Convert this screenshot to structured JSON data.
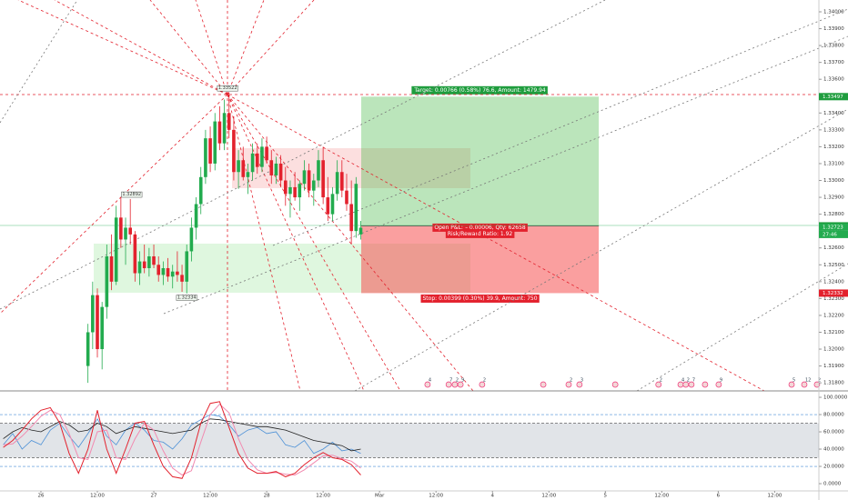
{
  "chart_data": [
    {
      "type": "candlestick",
      "xlim": [
        -8.7,
        165.4
      ],
      "xticks": [
        {
          "value": 0,
          "label": "26"
        },
        {
          "value": 12,
          "label": "12:00"
        },
        {
          "value": 24,
          "label": "27"
        },
        {
          "value": 36,
          "label": "12:00"
        },
        {
          "value": 48,
          "label": "28"
        },
        {
          "value": 60,
          "label": "12:00"
        },
        {
          "value": 72,
          "label": "Mar"
        },
        {
          "value": 84,
          "label": "12:00"
        },
        {
          "value": 96,
          "label": "4"
        },
        {
          "value": 108,
          "label": "12:00"
        },
        {
          "value": 120,
          "label": "5"
        },
        {
          "value": 132,
          "label": "12:00"
        },
        {
          "value": 144,
          "label": "6"
        },
        {
          "value": 156,
          "label": "12:00"
        }
      ],
      "ylim": [
        1.31763,
        1.3407
      ],
      "yticks": [
        {
          "value": 1.34,
          "label": "1.34000"
        },
        {
          "value": 1.339,
          "label": "1.33900"
        },
        {
          "value": 1.338,
          "label": "1.33800"
        },
        {
          "value": 1.337,
          "label": "1.33700"
        },
        {
          "value": 1.336,
          "label": "1.33600"
        },
        {
          "value": 1.335,
          "label": "1.33500"
        },
        {
          "value": 1.334,
          "label": "1.33400"
        },
        {
          "value": 1.333,
          "label": "1.33300"
        },
        {
          "value": 1.332,
          "label": "1.33200"
        },
        {
          "value": 1.331,
          "label": "1.33100"
        },
        {
          "value": 1.33,
          "label": "1.33000"
        },
        {
          "value": 1.329,
          "label": "1.32900"
        },
        {
          "value": 1.328,
          "label": "1.32800"
        },
        {
          "value": 1.327,
          "label": "1.32700"
        },
        {
          "value": 1.326,
          "label": "1.32600"
        },
        {
          "value": 1.325,
          "label": "1.32500"
        },
        {
          "value": 1.324,
          "label": "1.32400"
        },
        {
          "value": 1.323,
          "label": "1.32300"
        },
        {
          "value": 1.322,
          "label": "1.32200"
        },
        {
          "value": 1.321,
          "label": "1.32100"
        },
        {
          "value": 1.32,
          "label": "1.32000"
        },
        {
          "value": 1.319,
          "label": "1.31900"
        },
        {
          "value": 1.318,
          "label": "1.31800"
        }
      ],
      "up_color": "#22ab4e",
      "down_color": "#e3212d",
      "x": [
        10,
        11,
        12,
        13,
        14,
        15,
        16,
        17,
        18,
        19,
        20,
        21,
        22,
        23,
        24,
        25,
        26,
        27,
        28,
        29,
        30,
        31,
        32,
        33,
        34,
        35,
        36,
        37,
        38,
        39,
        40,
        41,
        42,
        43,
        44,
        45,
        46,
        47,
        48,
        49,
        50,
        51,
        52,
        53,
        54,
        55,
        56,
        57,
        58,
        59,
        60,
        61,
        62,
        63,
        64,
        65,
        66,
        67,
        68
      ],
      "open": [
        1.319,
        1.321,
        1.3232,
        1.32,
        1.3225,
        1.3255,
        1.324,
        1.3278,
        1.3265,
        1.3272,
        1.3268,
        1.3245,
        1.3252,
        1.3248,
        1.3255,
        1.325,
        1.3244,
        1.3248,
        1.3243,
        1.3246,
        1.3244,
        1.324,
        1.3258,
        1.3272,
        1.3286,
        1.3302,
        1.3325,
        1.331,
        1.3335,
        1.3322,
        1.334,
        1.333,
        1.3305,
        1.3312,
        1.3302,
        1.3305,
        1.3316,
        1.3308,
        1.332,
        1.3312,
        1.3303,
        1.331,
        1.33,
        1.3292,
        1.3296,
        1.329,
        1.3298,
        1.3306,
        1.3294,
        1.33,
        1.3312,
        1.329,
        1.328,
        1.3292,
        1.3305,
        1.3294,
        1.3286,
        1.327,
        1.3268
      ],
      "high": [
        1.3215,
        1.324,
        1.3236,
        1.3228,
        1.3262,
        1.3268,
        1.3285,
        1.329,
        1.3278,
        1.3289,
        1.327,
        1.3258,
        1.3262,
        1.326,
        1.3262,
        1.3255,
        1.3252,
        1.3254,
        1.325,
        1.3258,
        1.325,
        1.3262,
        1.3278,
        1.329,
        1.3308,
        1.333,
        1.3332,
        1.334,
        1.3344,
        1.3348,
        1.3352,
        1.3338,
        1.3318,
        1.332,
        1.331,
        1.3322,
        1.3322,
        1.3325,
        1.3326,
        1.3318,
        1.3314,
        1.3315,
        1.3308,
        1.33,
        1.3305,
        1.33,
        1.3312,
        1.331,
        1.3304,
        1.3318,
        1.332,
        1.3302,
        1.3296,
        1.3312,
        1.3312,
        1.3304,
        1.33,
        1.3302,
        1.3276
      ],
      "low": [
        1.318,
        1.32,
        1.3195,
        1.3188,
        1.3218,
        1.3235,
        1.3238,
        1.326,
        1.325,
        1.3262,
        1.324,
        1.3238,
        1.3245,
        1.3243,
        1.3248,
        1.324,
        1.3238,
        1.324,
        1.3236,
        1.324,
        1.3234,
        1.3233,
        1.3252,
        1.3265,
        1.328,
        1.3298,
        1.3305,
        1.3306,
        1.3318,
        1.3318,
        1.3325,
        1.33,
        1.3295,
        1.33,
        1.3292,
        1.33,
        1.3304,
        1.3305,
        1.331,
        1.3298,
        1.3298,
        1.3296,
        1.3285,
        1.3278,
        1.3288,
        1.3282,
        1.3294,
        1.329,
        1.3285,
        1.3296,
        1.3286,
        1.3276,
        1.3276,
        1.3288,
        1.329,
        1.3282,
        1.3262,
        1.3266,
        1.3265
      ],
      "close": [
        1.321,
        1.3232,
        1.32,
        1.3225,
        1.3255,
        1.324,
        1.3278,
        1.3265,
        1.3272,
        1.3268,
        1.3245,
        1.3252,
        1.3248,
        1.3255,
        1.325,
        1.3244,
        1.3248,
        1.3243,
        1.3246,
        1.3244,
        1.324,
        1.3258,
        1.3272,
        1.3286,
        1.3302,
        1.3325,
        1.331,
        1.3335,
        1.3322,
        1.334,
        1.333,
        1.3305,
        1.3312,
        1.3302,
        1.3305,
        1.3316,
        1.3308,
        1.332,
        1.3312,
        1.3303,
        1.331,
        1.33,
        1.3292,
        1.3296,
        1.329,
        1.3298,
        1.3306,
        1.3294,
        1.33,
        1.3312,
        1.329,
        1.328,
        1.3292,
        1.3305,
        1.3294,
        1.3286,
        1.327,
        1.3298,
        1.3272
      ],
      "annotations": [
        {
          "x": 19.3,
          "y": 1.32892,
          "label": "1.32892"
        },
        {
          "x": 31,
          "y": 1.32334,
          "label": "1.32334"
        },
        {
          "x": 39.7,
          "y": 1.33522,
          "label": "1.33522"
        }
      ],
      "position": {
        "x": [
          68.1,
          118.6
        ],
        "entry": 1.32731,
        "target": 1.33497,
        "stop": 1.32332,
        "target_label": "Target: 0.00766 (0.58%) 76.6, Amount: 1479.94",
        "pnl_label": "Open P&L: −0.00006, Qty: 62658",
        "rr_label": "Risk/Reward Ratio: 1.92",
        "stop_label": "Stop: 0.00399 (0.30%) 39.9, Amount: 750"
      },
      "price_tags": [
        {
          "value": 1.33497,
          "color": "#1f9d3e"
        },
        {
          "value": 1.32731,
          "color": "#1f9d3e"
        },
        {
          "value": 1.32723,
          "color": "#22ab4e"
        },
        {
          "value": 1.32332,
          "color": "#e3212d"
        }
      ],
      "countdown": "27:46",
      "events": [
        {
          "x": 82.2,
          "label": "4"
        },
        {
          "x": 86.7,
          "label": "7"
        },
        {
          "x": 88.0,
          "label": "2"
        },
        {
          "x": 89.2,
          "label": "9"
        },
        {
          "x": 93.8,
          "label": "2"
        },
        {
          "x": 106.8,
          "label": null
        },
        {
          "x": 112.2,
          "label": "2"
        },
        {
          "x": 114.5,
          "label": "3"
        },
        {
          "x": 122.1,
          "label": null
        },
        {
          "x": 131.3,
          "label": "2"
        },
        {
          "x": 136.0,
          "label": "4"
        },
        {
          "x": 137.1,
          "label": "2"
        },
        {
          "x": 138.3,
          "label": "7"
        },
        {
          "x": 141.2,
          "label": null
        },
        {
          "x": 144.1,
          "label": "9"
        },
        {
          "x": 159.6,
          "label": "5"
        },
        {
          "x": 162.3,
          "label": "12"
        },
        {
          "x": 165.0,
          "label": "2"
        }
      ]
    },
    {
      "type": "line",
      "ylim": [
        -8.4,
        105.3
      ],
      "yticks": [
        {
          "value": 100,
          "label": "100.0000"
        },
        {
          "value": 80,
          "label": "80.0000"
        },
        {
          "value": 60,
          "label": "60.0000"
        },
        {
          "value": 40,
          "label": "40.0000"
        },
        {
          "value": 20,
          "label": "20.0000"
        },
        {
          "value": 0,
          "label": "0.0000"
        }
      ],
      "band": [
        30,
        70
      ],
      "levels": [
        80,
        20
      ],
      "x": [
        -8,
        -6,
        -4,
        -2,
        0,
        2,
        4,
        6,
        8,
        10,
        12,
        14,
        16,
        18,
        20,
        22,
        24,
        26,
        28,
        30,
        32,
        34,
        36,
        38,
        40,
        42,
        44,
        46,
        48,
        50,
        52,
        54,
        56,
        58,
        60,
        62,
        64,
        66,
        68
      ],
      "series": [
        {
          "color": "#4a8fd6",
          "values": [
            45,
            58,
            40,
            50,
            45,
            62,
            70,
            55,
            42,
            58,
            75,
            55,
            45,
            62,
            70,
            62,
            50,
            48,
            40,
            52,
            68,
            74,
            80,
            78,
            68,
            55,
            62,
            65,
            58,
            60,
            45,
            42,
            50,
            35,
            40,
            48,
            38,
            40,
            35
          ]
        },
        {
          "color": "#222222",
          "values": [
            52,
            60,
            65,
            62,
            60,
            66,
            72,
            68,
            60,
            62,
            70,
            66,
            58,
            62,
            66,
            64,
            62,
            60,
            58,
            60,
            62,
            70,
            75,
            74,
            72,
            70,
            68,
            66,
            66,
            64,
            62,
            58,
            54,
            50,
            48,
            46,
            44,
            38,
            40
          ]
        },
        {
          "color": "#f28ab0",
          "values": [
            45,
            46,
            55,
            66,
            78,
            85,
            80,
            58,
            30,
            28,
            60,
            62,
            30,
            28,
            52,
            70,
            62,
            38,
            18,
            10,
            15,
            48,
            80,
            92,
            82,
            52,
            28,
            16,
            12,
            13,
            11,
            10,
            16,
            24,
            32,
            33,
            29,
            26,
            18
          ]
        },
        {
          "color": "#e3212d",
          "values": [
            42,
            50,
            62,
            75,
            85,
            88,
            70,
            35,
            12,
            40,
            85,
            40,
            12,
            40,
            70,
            72,
            45,
            20,
            8,
            6,
            30,
            70,
            93,
            95,
            65,
            35,
            18,
            12,
            12,
            14,
            8,
            12,
            22,
            30,
            36,
            30,
            28,
            22,
            10
          ]
        }
      ]
    }
  ]
}
